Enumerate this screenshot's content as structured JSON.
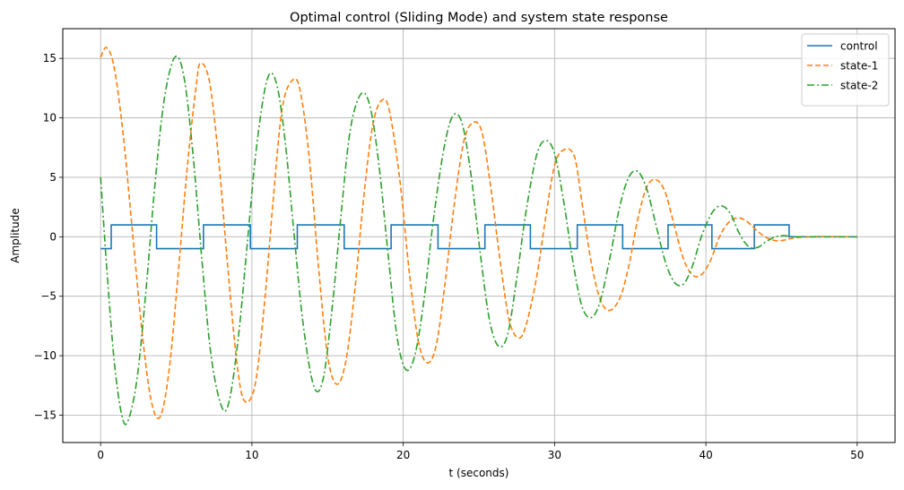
{
  "chart_data": {
    "type": "line",
    "title": "Optimal control (Sliding Mode) and system state response",
    "xlabel": "t (seconds)",
    "ylabel": "Amplitude",
    "xlim": [
      -2.5,
      52.5
    ],
    "ylim": [
      -17.3,
      17.5
    ],
    "xticks": [
      0,
      10,
      20,
      30,
      40,
      50
    ],
    "xtick_labels": [
      "0",
      "10",
      "20",
      "30",
      "40",
      "50"
    ],
    "yticks": [
      -15,
      -10,
      -5,
      0,
      5,
      10,
      15
    ],
    "ytick_labels": [
      "−15",
      "−10",
      "−5",
      "0",
      "5",
      "10",
      "15"
    ],
    "grid": true,
    "legend_position": "top-right",
    "series": [
      {
        "name": "control",
        "color": "#1f77b4",
        "style": "solid",
        "x": [
          0,
          0.7,
          0.7,
          3.7,
          3.7,
          6.8,
          6.8,
          9.9,
          9.9,
          13.0,
          13.0,
          16.1,
          16.1,
          19.2,
          19.2,
          22.3,
          22.3,
          25.4,
          25.4,
          28.4,
          28.4,
          31.5,
          31.5,
          34.5,
          34.5,
          37.5,
          37.5,
          40.4,
          40.4,
          43.2,
          43.2,
          45.5,
          45.5,
          50
        ],
        "values": [
          -1,
          -1,
          1,
          1,
          -1,
          -1,
          1,
          1,
          -1,
          -1,
          1,
          1,
          -1,
          -1,
          1,
          1,
          -1,
          -1,
          1,
          1,
          -1,
          -1,
          1,
          1,
          -1,
          -1,
          1,
          1,
          -1,
          -1,
          1,
          1,
          0,
          0
        ]
      },
      {
        "name": "state-1",
        "color": "#ff7f0e",
        "style": "dashed",
        "x": [
          0,
          0.4,
          0.9,
          1.5,
          2.1,
          2.7,
          3.3,
          3.9,
          4.5,
          5.1,
          5.7,
          6.3,
          6.6,
          7.2,
          7.8,
          8.4,
          9.0,
          9.5,
          10.2,
          10.8,
          11.4,
          12.0,
          12.7,
          13.2,
          13.8,
          14.4,
          15.0,
          15.6,
          16.2,
          16.8,
          17.4,
          18.0,
          18.6,
          19.1,
          19.8,
          20.4,
          21.0,
          21.6,
          22.2,
          22.8,
          23.4,
          24.0,
          24.6,
          25.2,
          25.8,
          26.4,
          27.0,
          27.6,
          28.1,
          28.8,
          29.4,
          30.0,
          30.6,
          31.3,
          31.8,
          32.4,
          33.0,
          33.6,
          34.3,
          34.9,
          35.5,
          36.1,
          36.7,
          37.3,
          37.9,
          38.5,
          39.1,
          39.7,
          40.3,
          40.9,
          41.5,
          42.1,
          42.7,
          43.3,
          43.9,
          44.5,
          45.1,
          45.8,
          47,
          50
        ],
        "values": [
          15.1,
          15.9,
          14.2,
          8.5,
          0.5,
          -7.5,
          -13.5,
          -15.2,
          -11.5,
          -3.5,
          5.5,
          12.5,
          14.6,
          13.0,
          6.5,
          -2.5,
          -10.5,
          -13.8,
          -12.5,
          -6.0,
          3.0,
          10.8,
          13.2,
          12.2,
          6.5,
          -2.5,
          -10.0,
          -12.4,
          -10.5,
          -4.5,
          3.5,
          9.5,
          11.5,
          10.5,
          4.5,
          -3.0,
          -8.8,
          -10.6,
          -9.0,
          -3.5,
          3.0,
          8.0,
          9.6,
          8.8,
          4.0,
          -2.0,
          -7.0,
          -8.5,
          -7.5,
          -3.5,
          1.5,
          6.0,
          7.3,
          6.8,
          3.0,
          -2.0,
          -5.2,
          -6.2,
          -5.2,
          -2.5,
          1.5,
          4.2,
          4.8,
          3.8,
          1.0,
          -1.8,
          -3.2,
          -3.2,
          -2.0,
          0.0,
          1.2,
          1.6,
          1.3,
          0.6,
          0.0,
          -0.3,
          -0.3,
          -0.1,
          0.0,
          0.0
        ]
      },
      {
        "name": "state-2",
        "color": "#2ca02c",
        "style": "dashdot",
        "x": [
          0,
          0.4,
          0.9,
          1.4,
          1.8,
          2.4,
          3.0,
          3.6,
          4.2,
          4.9,
          5.5,
          6.1,
          6.7,
          7.3,
          8.0,
          8.5,
          9.1,
          9.7,
          10.3,
          11.0,
          11.6,
          12.2,
          12.8,
          13.4,
          14.1,
          14.7,
          15.3,
          15.9,
          16.5,
          17.2,
          17.8,
          18.4,
          19.0,
          19.6,
          20.2,
          20.8,
          21.4,
          22.0,
          22.7,
          23.3,
          23.9,
          24.5,
          25.1,
          25.7,
          26.3,
          26.9,
          27.5,
          28.1,
          28.8,
          29.4,
          30.0,
          30.6,
          31.2,
          31.8,
          32.4,
          33.0,
          33.7,
          34.3,
          34.9,
          35.5,
          36.1,
          36.7,
          37.3,
          37.9,
          38.5,
          39.1,
          39.7,
          40.4,
          41.0,
          41.6,
          42.2,
          42.8,
          43.4,
          44.0,
          44.6,
          45.2,
          45.8,
          47,
          50
        ],
        "values": [
          5.0,
          -2.5,
          -10.5,
          -15.0,
          -15.5,
          -12.0,
          -4.5,
          4.5,
          11.5,
          15.1,
          13.5,
          7.0,
          -2.0,
          -10.0,
          -14.3,
          -13.8,
          -8.5,
          -0.5,
          7.5,
          13.2,
          13.0,
          8.0,
          0.0,
          -7.5,
          -12.6,
          -12.0,
          -6.0,
          2.0,
          9.0,
          12.0,
          11.0,
          6.0,
          -1.5,
          -8.5,
          -11.2,
          -9.8,
          -5.0,
          1.5,
          7.5,
          10.2,
          9.5,
          5.0,
          -1.5,
          -7.0,
          -9.2,
          -8.2,
          -3.5,
          2.0,
          6.8,
          8.1,
          7.0,
          3.0,
          -2.0,
          -5.8,
          -6.8,
          -5.5,
          -1.5,
          2.5,
          5.0,
          5.5,
          4.0,
          1.0,
          -2.0,
          -3.8,
          -4.0,
          -2.5,
          0.0,
          2.0,
          2.6,
          2.0,
          0.3,
          -0.8,
          -0.9,
          -0.4,
          0.0,
          0.1,
          0.0,
          0.0,
          0.0
        ]
      }
    ]
  }
}
